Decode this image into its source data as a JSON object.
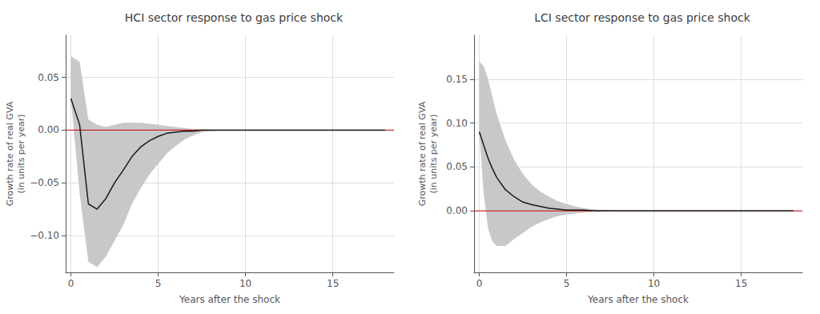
{
  "chart_data": [
    {
      "type": "line",
      "title": "HCI sector response to gas price shock",
      "xlabel": "Years after the shock",
      "ylabel": "Growth rate of real GVA\n(in units per year)",
      "grid": true,
      "x": [
        0.0,
        0.5,
        1.0,
        1.5,
        2.0,
        2.5,
        3.0,
        3.5,
        4.0,
        4.5,
        5.0,
        5.5,
        6.0,
        6.5,
        7.0,
        7.5,
        8.0,
        9.0,
        10.0,
        11.0,
        12.0,
        13.0,
        14.0,
        15.0,
        16.0,
        17.0,
        18.0
      ],
      "series": [
        {
          "type": "band",
          "color": "#c8c8c8",
          "lower": [
            0.03,
            -0.06,
            -0.125,
            -0.13,
            -0.12,
            -0.105,
            -0.09,
            -0.07,
            -0.055,
            -0.042,
            -0.032,
            -0.022,
            -0.015,
            -0.009,
            -0.005,
            -0.002,
            -0.001,
            0.0,
            0.0,
            0.0,
            0.0,
            0.0,
            0.0,
            0.0,
            0.0,
            0.0,
            0.0
          ],
          "upper": [
            0.07,
            0.065,
            0.01,
            0.005,
            0.003,
            0.005,
            0.007,
            0.007,
            0.007,
            0.006,
            0.005,
            0.004,
            0.003,
            0.002,
            0.001,
            0.001,
            0.0,
            0.0,
            0.0,
            0.0,
            0.0,
            0.0,
            0.0,
            0.0,
            0.0,
            0.0,
            0.0
          ]
        },
        {
          "type": "hline",
          "color": "#cc0000",
          "y": 0
        },
        {
          "type": "line",
          "color": "#1a1a1a",
          "values": [
            0.03,
            0.005,
            -0.07,
            -0.075,
            -0.065,
            -0.05,
            -0.038,
            -0.025,
            -0.016,
            -0.01,
            -0.006,
            -0.003,
            -0.002,
            -0.001,
            -0.001,
            0.0,
            0.0,
            0.0,
            0.0,
            0.0,
            0.0,
            0.0,
            0.0,
            0.0,
            0.0,
            0.0,
            0.0
          ]
        }
      ],
      "xlim": [
        -0.3,
        18.5
      ],
      "xticks": [
        0,
        5,
        10,
        15
      ],
      "ylim": [
        -0.135,
        0.09
      ],
      "yticks": [
        {
          "value": -0.1,
          "label": "−0.10"
        },
        {
          "value": -0.05,
          "label": "−0.05"
        },
        {
          "value": 0,
          "label": "0.00"
        },
        0.05
      ]
    },
    {
      "type": "line",
      "title": "LCI sector response to gas price shock",
      "xlabel": "Years after the shock",
      "ylabel": "Growth rate of real GVA\n(in units per year)",
      "grid": true,
      "x": [
        0.0,
        0.25,
        0.5,
        0.75,
        1.0,
        1.5,
        2.0,
        2.5,
        3.0,
        3.5,
        4.0,
        4.5,
        5.0,
        5.5,
        6.0,
        6.5,
        7.0,
        7.5,
        8.0,
        9.0,
        10.0,
        11.0,
        12.0,
        13.0,
        14.0,
        15.0,
        16.0,
        17.0,
        18.0
      ],
      "series": [
        {
          "type": "band",
          "color": "#c8c8c8",
          "lower": [
            0.09,
            0.02,
            -0.02,
            -0.035,
            -0.04,
            -0.04,
            -0.032,
            -0.025,
            -0.018,
            -0.013,
            -0.009,
            -0.006,
            -0.004,
            -0.003,
            -0.002,
            -0.001,
            -0.001,
            0.0,
            0.0,
            0.0,
            0.0,
            0.0,
            0.0,
            0.0,
            0.0,
            0.0,
            0.0,
            0.0,
            0.0
          ],
          "upper": [
            0.17,
            0.165,
            0.15,
            0.13,
            0.11,
            0.08,
            0.058,
            0.042,
            0.03,
            0.022,
            0.016,
            0.011,
            0.008,
            0.005,
            0.003,
            0.002,
            0.001,
            0.001,
            0.0,
            0.0,
            0.0,
            0.0,
            0.0,
            0.0,
            0.0,
            0.0,
            0.0,
            0.0,
            0.0
          ]
        },
        {
          "type": "hline",
          "color": "#cc0000",
          "y": 0
        },
        {
          "type": "line",
          "color": "#1a1a1a",
          "values": [
            0.09,
            0.075,
            0.06,
            0.048,
            0.038,
            0.024,
            0.016,
            0.01,
            0.007,
            0.005,
            0.003,
            0.002,
            0.001,
            0.001,
            0.001,
            0.0,
            0.0,
            0.0,
            0.0,
            0.0,
            0.0,
            0.0,
            0.0,
            0.0,
            0.0,
            0.0,
            0.0,
            0.0,
            0.0
          ]
        }
      ],
      "xlim": [
        -0.3,
        18.5
      ],
      "xticks": [
        0,
        5,
        10,
        15
      ],
      "ylim": [
        -0.07,
        0.2
      ],
      "yticks": [
        {
          "value": 0,
          "label": "0.00"
        },
        0.05,
        {
          "value": 0.1,
          "label": "0.10"
        },
        0.15
      ]
    }
  ]
}
